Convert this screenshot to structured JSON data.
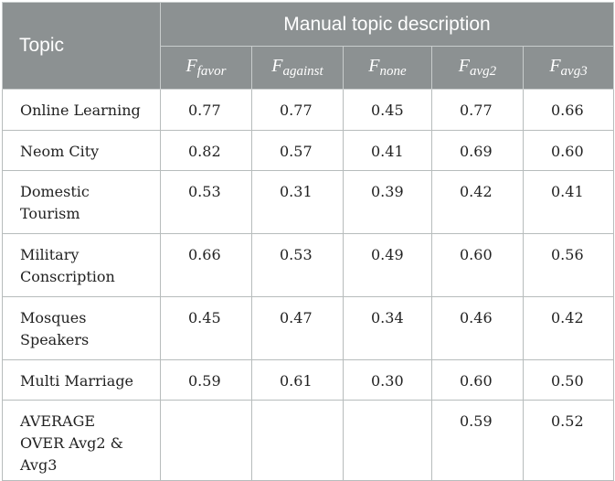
{
  "header": {
    "topic_label": "Topic",
    "span_label": "Manual topic description",
    "metrics": [
      {
        "base": "F",
        "sub": "favor"
      },
      {
        "base": "F",
        "sub": "against"
      },
      {
        "base": "F",
        "sub": "none"
      },
      {
        "base": "F",
        "sub": "avg2"
      },
      {
        "base": "F",
        "sub": "avg3"
      }
    ]
  },
  "rows": [
    {
      "topic": "Online Learning",
      "values": [
        "0.77",
        "0.77",
        "0.45",
        "0.77",
        "0.66"
      ]
    },
    {
      "topic": "Neom City",
      "values": [
        "0.82",
        "0.57",
        "0.41",
        "0.69",
        "0.60"
      ]
    },
    {
      "topic": "Domestic\nTourism",
      "values": [
        "0.53",
        "0.31",
        "0.39",
        "0.42",
        "0.41"
      ]
    },
    {
      "topic": "Military\nConscription",
      "values": [
        "0.66",
        "0.53",
        "0.49",
        "0.60",
        "0.56"
      ]
    },
    {
      "topic": "Mosques\nSpeakers",
      "values": [
        "0.45",
        "0.47",
        "0.34",
        "0.46",
        "0.42"
      ]
    },
    {
      "topic": "Multi Marriage",
      "values": [
        "0.59",
        "0.61",
        "0.30",
        "0.60",
        "0.50"
      ]
    },
    {
      "topic": "AVERAGE\nOVER Avg2 &\nAvg3",
      "values": [
        "",
        "",
        "",
        "0.59",
        "0.52"
      ]
    }
  ]
}
